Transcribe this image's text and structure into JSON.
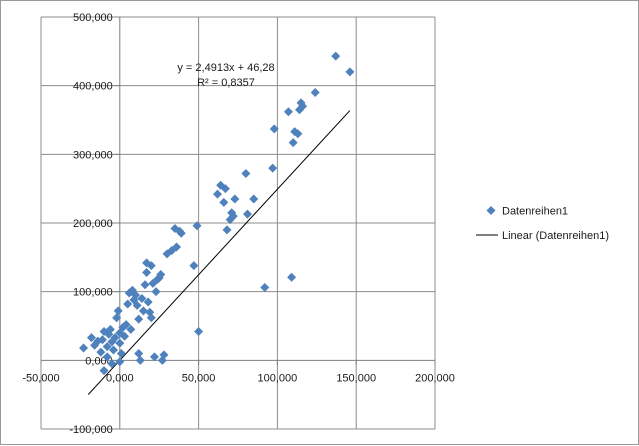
{
  "chart_data": {
    "type": "scatter",
    "title": "",
    "xlabel": "",
    "ylabel": "",
    "xlim": [
      -50000,
      200000
    ],
    "ylim": [
      -100000,
      500000
    ],
    "x_ticks": [
      -50000,
      0,
      50000,
      100000,
      150000,
      200000
    ],
    "y_ticks": [
      -100000,
      0,
      100000,
      200000,
      300000,
      400000,
      500000
    ],
    "x_tick_labels": [
      "-50,000",
      "0,000",
      "50,000",
      "100,000",
      "150,000",
      "200,000"
    ],
    "y_tick_labels": [
      "-100,000",
      "0,000",
      "100,000",
      "200,000",
      "300,000",
      "400,000",
      "500,000"
    ],
    "grid": "vertical and horizontal major gridlines",
    "legend_position": "right",
    "marker_color": "#4f81bd",
    "trendline_color": "#000000",
    "series": [
      {
        "name": "Datenreihen1",
        "points": [
          [
            -23000,
            18000
          ],
          [
            -18000,
            33000
          ],
          [
            -16000,
            22000
          ],
          [
            -14000,
            28000
          ],
          [
            -12000,
            12000
          ],
          [
            -11000,
            30000
          ],
          [
            -10000,
            -15000
          ],
          [
            -10000,
            42000
          ],
          [
            -8000,
            5000
          ],
          [
            -8000,
            20000
          ],
          [
            -7000,
            38000
          ],
          [
            -6000,
            45000
          ],
          [
            -5000,
            27000
          ],
          [
            -5000,
            -5000
          ],
          [
            -4000,
            15000
          ],
          [
            -3000,
            33000
          ],
          [
            -2000,
            62000
          ],
          [
            -1000,
            72000
          ],
          [
            0,
            25000
          ],
          [
            0,
            40000
          ],
          [
            0,
            -2000
          ],
          [
            1000,
            10000
          ],
          [
            2000,
            48000
          ],
          [
            3000,
            35000
          ],
          [
            4000,
            52000
          ],
          [
            5000,
            82000
          ],
          [
            6000,
            98000
          ],
          [
            7000,
            45000
          ],
          [
            8000,
            102000
          ],
          [
            9000,
            88000
          ],
          [
            10000,
            95000
          ],
          [
            11000,
            80000
          ],
          [
            12000,
            60000
          ],
          [
            12000,
            10000
          ],
          [
            13000,
            0
          ],
          [
            14000,
            90000
          ],
          [
            15000,
            72000
          ],
          [
            16000,
            110000
          ],
          [
            17000,
            128000
          ],
          [
            17000,
            142000
          ],
          [
            18000,
            85000
          ],
          [
            19000,
            70000
          ],
          [
            20000,
            138000
          ],
          [
            20000,
            62000
          ],
          [
            21000,
            112000
          ],
          [
            22000,
            5000
          ],
          [
            23000,
            100000
          ],
          [
            24000,
            118000
          ],
          [
            25000,
            120000
          ],
          [
            26000,
            125000
          ],
          [
            27000,
            0
          ],
          [
            28000,
            8000
          ],
          [
            30000,
            155000
          ],
          [
            33000,
            160000
          ],
          [
            35000,
            192000
          ],
          [
            36000,
            165000
          ],
          [
            38000,
            188000
          ],
          [
            39000,
            185000
          ],
          [
            47000,
            138000
          ],
          [
            49000,
            196000
          ],
          [
            50000,
            42000
          ],
          [
            62000,
            242000
          ],
          [
            64000,
            255000
          ],
          [
            66000,
            230000
          ],
          [
            67000,
            250000
          ],
          [
            68000,
            190000
          ],
          [
            70000,
            205000
          ],
          [
            71000,
            215000
          ],
          [
            72000,
            210000
          ],
          [
            73000,
            235000
          ],
          [
            80000,
            272000
          ],
          [
            81000,
            213000
          ],
          [
            85000,
            235000
          ],
          [
            92000,
            106000
          ],
          [
            97000,
            280000
          ],
          [
            98000,
            337000
          ],
          [
            107000,
            362000
          ],
          [
            109000,
            121000
          ],
          [
            110000,
            317000
          ],
          [
            111000,
            333000
          ],
          [
            113000,
            330000
          ],
          [
            114000,
            365000
          ],
          [
            115000,
            375000
          ],
          [
            116000,
            370000
          ],
          [
            124000,
            390000
          ],
          [
            137000,
            443000
          ],
          [
            146000,
            420000
          ]
        ]
      }
    ],
    "trendline": {
      "name": "Linear (Datenreihen1)",
      "slope": 2.4913,
      "intercept": 46.28,
      "x_range": [
        -20000,
        146000
      ],
      "equation": "y = 2,4913x + 46,28",
      "r_squared": "R² = 0,8357"
    }
  }
}
